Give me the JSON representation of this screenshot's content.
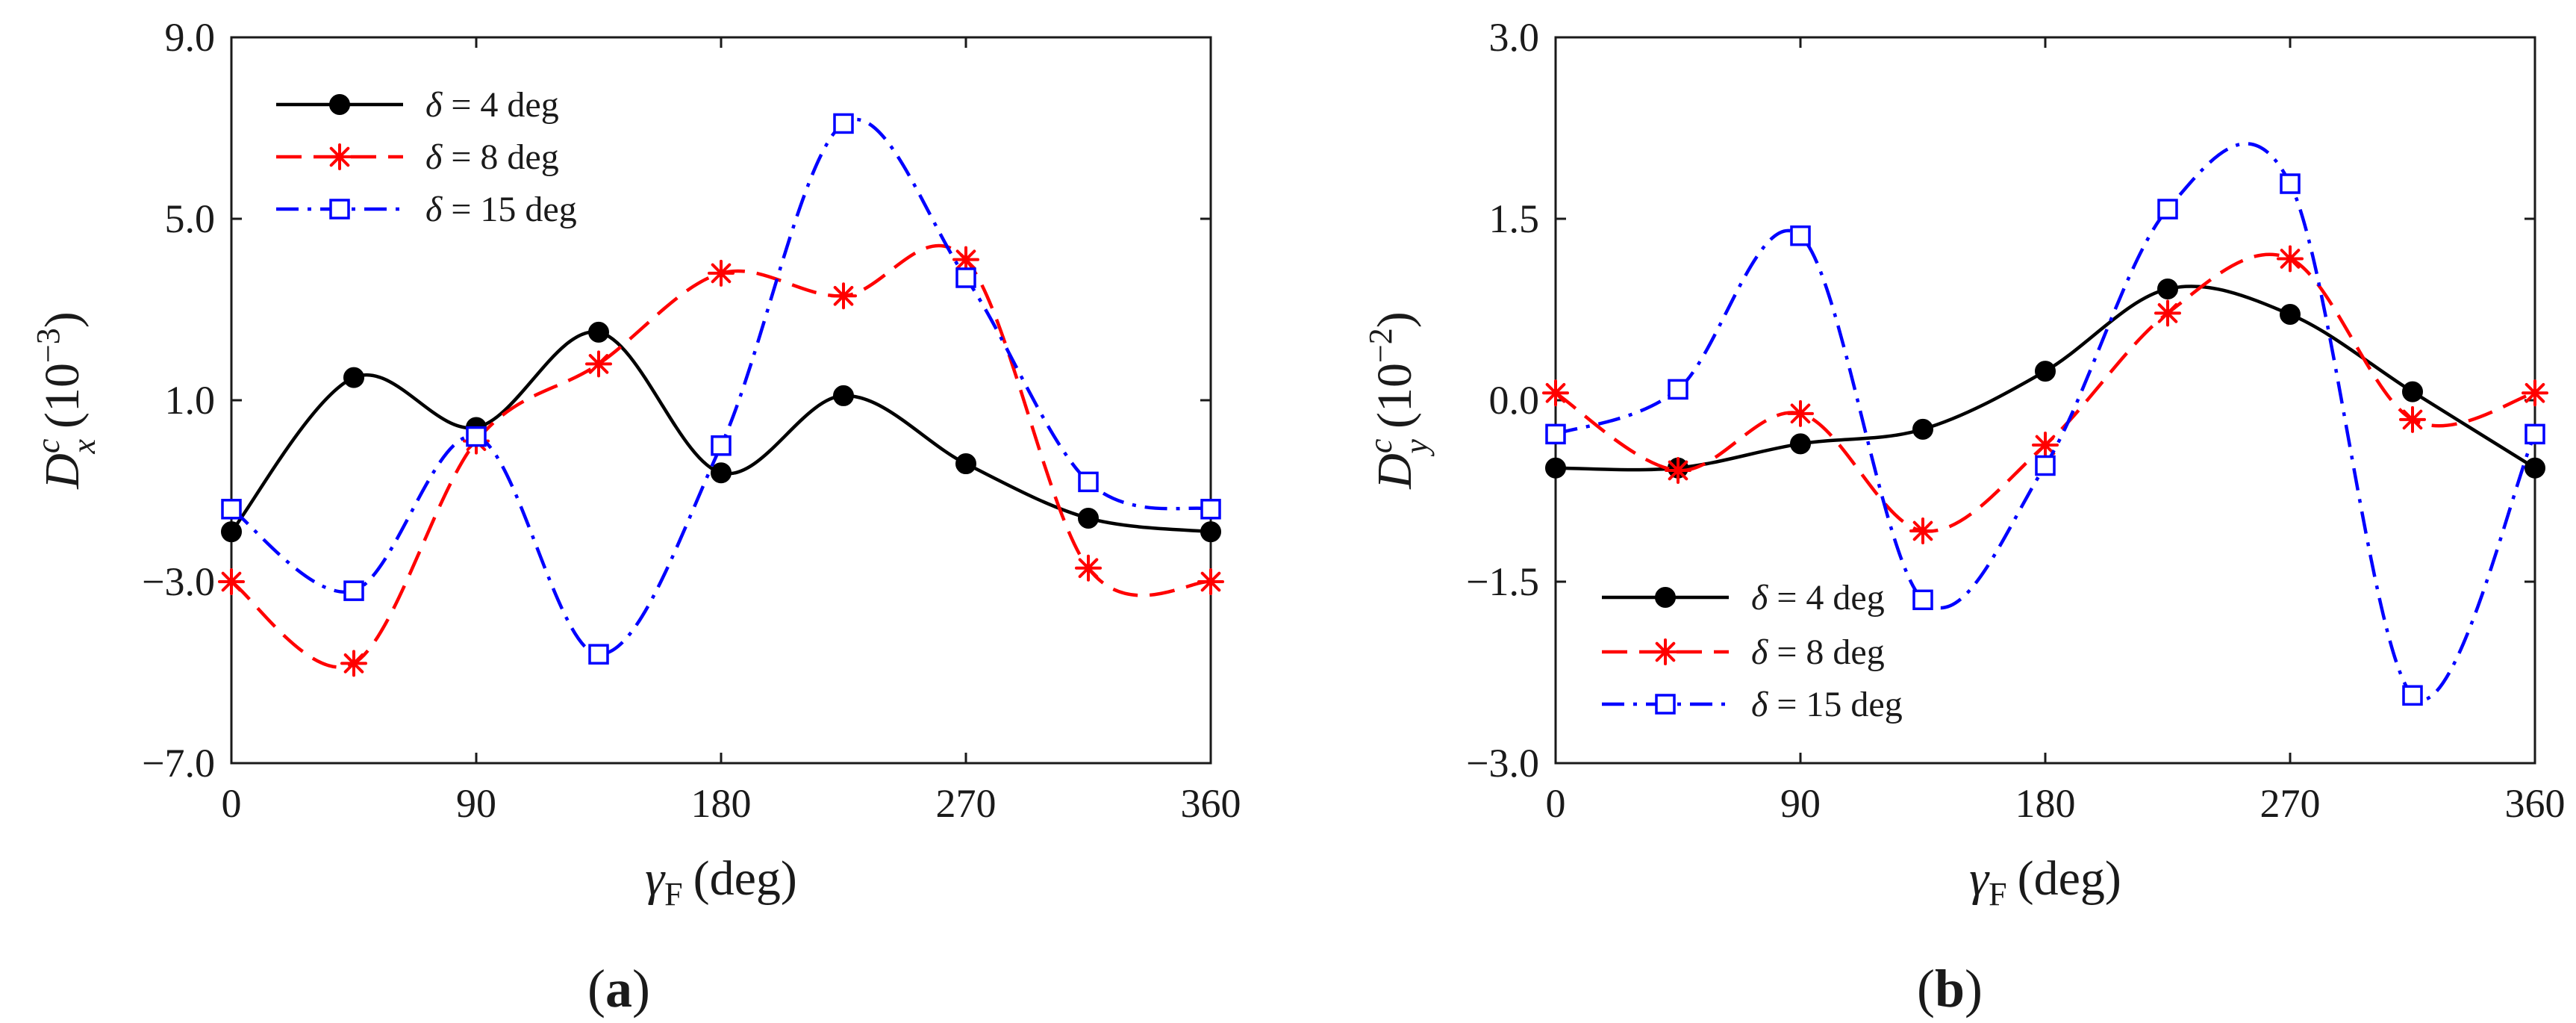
{
  "chart_data": [
    {
      "type": "line",
      "panel": "(a)",
      "panel_letter": "a",
      "xlabel_symbol": "γ",
      "xlabel_sub": "F",
      "xlabel_unit": "(deg)",
      "ylabel_symbol": "D",
      "ylabel_sup": "c",
      "ylabel_sub": "x",
      "ylabel_unit": "(10",
      "ylabel_exp": "−3",
      "ylabel_close": ")",
      "xlim": [
        0,
        360
      ],
      "ylim": [
        -7,
        9
      ],
      "xticks": [
        0,
        90,
        180,
        270,
        360
      ],
      "xtick_labels": [
        "0",
        "90",
        "180",
        "270",
        "360"
      ],
      "yticks": [
        -7,
        -3,
        1,
        5,
        9
      ],
      "ytick_labels": [
        "−7.0",
        "−3.0",
        "1.0",
        "5.0",
        "9.0"
      ],
      "legend_position": "top-left",
      "x": [
        0,
        45,
        90,
        135,
        180,
        225,
        270,
        315,
        360
      ],
      "series": [
        {
          "name": "δ = 4 deg",
          "symbol": "δ",
          "label_rest": " = 4 deg",
          "color": "#000000",
          "dash": "",
          "marker": "circle",
          "values": [
            -1.9,
            1.5,
            0.4,
            2.5,
            -0.6,
            1.1,
            -0.4,
            -1.6,
            -1.9
          ]
        },
        {
          "name": "δ = 8 deg",
          "symbol": "δ",
          "label_rest": " = 8 deg",
          "color": "#ff0000",
          "dash": "long-dash",
          "marker": "asterisk",
          "values": [
            -3.0,
            -4.8,
            0.1,
            1.8,
            3.8,
            3.3,
            4.1,
            -2.7,
            -3.0
          ]
        },
        {
          "name": "δ = 15 deg",
          "symbol": "δ",
          "label_rest": " = 15 deg",
          "color": "#0000ff",
          "dash": "dash-dot",
          "marker": "square",
          "values": [
            -1.4,
            -3.2,
            0.2,
            -4.6,
            0.0,
            7.1,
            3.7,
            -0.8,
            -1.4
          ]
        }
      ]
    },
    {
      "type": "line",
      "panel": "(b)",
      "panel_letter": "b",
      "xlabel_symbol": "γ",
      "xlabel_sub": "F",
      "xlabel_unit": "(deg)",
      "ylabel_symbol": "D",
      "ylabel_sup": "c",
      "ylabel_sub": "y",
      "ylabel_unit": "(10",
      "ylabel_exp": "−2",
      "ylabel_close": ")",
      "xlim": [
        0,
        360
      ],
      "ylim": [
        -3,
        3
      ],
      "xticks": [
        0,
        90,
        180,
        270,
        360
      ],
      "xtick_labels": [
        "0",
        "90",
        "180",
        "270",
        "360"
      ],
      "yticks": [
        -3,
        -1.5,
        0,
        1.5,
        3
      ],
      "ytick_labels": [
        "−3.0",
        "−1.5",
        "0.0",
        "1.5",
        "3.0"
      ],
      "legend_position": "bottom-left",
      "x": [
        0,
        45,
        90,
        135,
        180,
        225,
        270,
        315,
        360
      ],
      "series": [
        {
          "name": "δ = 4 deg",
          "symbol": "δ",
          "label_rest": " = 4 deg",
          "color": "#000000",
          "dash": "",
          "marker": "circle",
          "values": [
            -0.56,
            -0.56,
            -0.36,
            -0.24,
            0.24,
            0.92,
            0.71,
            0.07,
            -0.56
          ]
        },
        {
          "name": "δ = 8 deg",
          "symbol": "δ",
          "label_rest": " = 8 deg",
          "color": "#ff0000",
          "dash": "long-dash",
          "marker": "asterisk",
          "values": [
            0.06,
            -0.58,
            -0.11,
            -1.08,
            -0.37,
            0.72,
            1.17,
            -0.16,
            0.06
          ]
        },
        {
          "name": "δ = 15 deg",
          "symbol": "δ",
          "label_rest": " = 15 deg",
          "color": "#0000ff",
          "dash": "dash-dot",
          "marker": "square",
          "values": [
            -0.28,
            0.09,
            1.36,
            -1.65,
            -0.54,
            1.58,
            1.79,
            -2.44,
            -0.28
          ]
        }
      ]
    }
  ]
}
